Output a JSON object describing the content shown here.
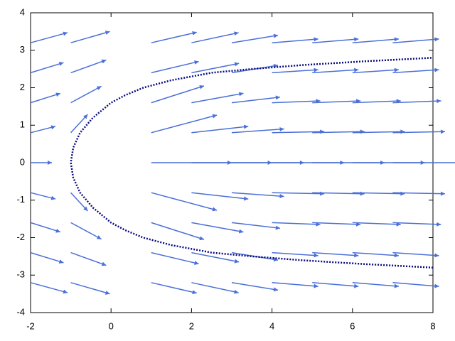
{
  "chart_data": {
    "type": "vector",
    "xlim": [
      -2,
      8
    ],
    "ylim": [
      -4,
      4
    ],
    "xticks": [
      -2,
      0,
      2,
      4,
      6,
      8
    ],
    "yticks": [
      -4,
      -3,
      -2,
      -1,
      0,
      1,
      2,
      3,
      4
    ],
    "vector_color": "#4a6fd8",
    "curve_color": "#0a0a80",
    "vectors": {
      "x": [
        -2,
        -1,
        1,
        2,
        3,
        4,
        5,
        6,
        7
      ],
      "y": [
        3.2,
        2.4,
        1.6,
        0.8,
        0,
        -0.8,
        -1.6,
        -2.4,
        -3.2
      ],
      "dx": [
        [
          0.92,
          0.97,
          1.13,
          1.17,
          1.15,
          1.15,
          1.15,
          1.15,
          1.15
        ],
        [
          0.82,
          0.88,
          1.18,
          1.18,
          1.15,
          1.15,
          1.15,
          1.15,
          1.15
        ],
        [
          0.74,
          0.76,
          1.31,
          1.29,
          1.2,
          1.2,
          1.2,
          1.2,
          1.2
        ],
        [
          0.62,
          0.42,
          1.63,
          1.41,
          1.3,
          1.3,
          1.3,
          1.3,
          1.3
        ],
        [
          0.53,
          0,
          2.0,
          2.0,
          1.8,
          1.8,
          1.8,
          1.8,
          1.8
        ],
        [
          0.62,
          0.42,
          1.63,
          1.41,
          1.3,
          1.3,
          1.3,
          1.3,
          1.3
        ],
        [
          0.74,
          0.76,
          1.31,
          1.29,
          1.2,
          1.2,
          1.2,
          1.2,
          1.2
        ],
        [
          0.82,
          0.88,
          1.18,
          1.18,
          1.15,
          1.15,
          1.15,
          1.15,
          1.15
        ],
        [
          0.92,
          0.97,
          1.13,
          1.17,
          1.15,
          1.15,
          1.15,
          1.15,
          1.15
        ]
      ],
      "dy": [
        [
          0.27,
          0.3,
          0.28,
          0.27,
          0.2,
          0.1,
          0.1,
          0.1,
          0.1
        ],
        [
          0.27,
          0.34,
          0.3,
          0.25,
          0.2,
          0.08,
          0.08,
          0.08,
          0.08
        ],
        [
          0.25,
          0.44,
          0.45,
          0.25,
          0.15,
          0.05,
          0.05,
          0.05,
          0.05
        ],
        [
          0.17,
          0.49,
          0.47,
          0.17,
          0.1,
          0.03,
          0.03,
          0.03,
          0.03
        ],
        [
          0,
          0,
          0,
          0,
          0,
          0,
          0,
          0,
          0
        ],
        [
          -0.17,
          -0.49,
          -0.47,
          -0.17,
          -0.1,
          -0.03,
          -0.03,
          -0.03,
          -0.03
        ],
        [
          -0.25,
          -0.44,
          -0.45,
          -0.25,
          -0.15,
          -0.05,
          -0.05,
          -0.05,
          -0.05
        ],
        [
          -0.27,
          -0.34,
          -0.3,
          -0.25,
          -0.2,
          -0.08,
          -0.08,
          -0.08,
          -0.08
        ],
        [
          -0.27,
          -0.3,
          -0.28,
          -0.27,
          -0.2,
          -0.1,
          -0.1,
          -0.1,
          -0.1
        ]
      ]
    },
    "curve": {
      "x": [
        8,
        6.2,
        4.7,
        3.5,
        2.5,
        1.5,
        0.8,
        0.35,
        0,
        -0.45,
        -0.77,
        -0.94,
        -1,
        -0.94,
        -0.77,
        -0.45,
        0,
        0.35,
        0.8,
        1.5,
        2.5,
        3.5,
        4.7,
        6.2,
        8
      ],
      "y": [
        -2.8,
        -2.7,
        -2.6,
        -2.5,
        -2.4,
        -2.2,
        -2.0,
        -1.8,
        -1.6,
        -1.2,
        -0.8,
        -0.4,
        0,
        0.4,
        0.8,
        1.2,
        1.6,
        1.8,
        2.0,
        2.2,
        2.4,
        2.5,
        2.6,
        2.7,
        2.8
      ]
    }
  }
}
